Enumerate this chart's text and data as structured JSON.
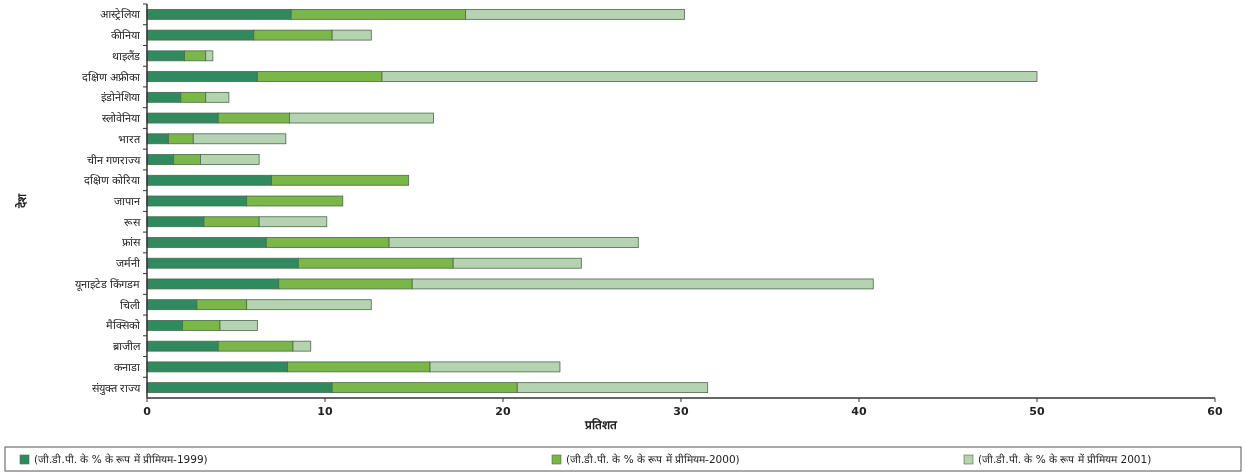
{
  "chart_data": {
    "type": "bar",
    "orientation": "horizontal",
    "stacked": true,
    "categories": [
      "आस्ट्रेलिया",
      "कीनिया",
      "थाइलैंड",
      "दक्षिण अफ्रीका",
      "इंडोनेशिया",
      "स्लोवेनिया",
      "भारत",
      "चीन गणराज्य",
      "दक्षिण कोरिया",
      "जापान",
      "रूस",
      "फ्रांस",
      "जर्मनी",
      "यूनाइटेड किंगडम",
      "चिली",
      "मैक्सिको",
      "ब्राजील",
      "कनाडा",
      "संयुक्त राज्य"
    ],
    "series": [
      {
        "name": "(जी.डी.पी. के % के रूप में प्रीमियम-1999)",
        "color": "#2f8a5f",
        "values": [
          8.1,
          6.0,
          2.1,
          6.2,
          1.9,
          4.0,
          1.2,
          1.5,
          7.0,
          5.6,
          3.2,
          6.7,
          8.5,
          7.4,
          2.8,
          2.0,
          4.0,
          7.9,
          10.4
        ]
      },
      {
        "name": "(जी.डी.पी. के % के रूप में प्रीमियम-2000)",
        "color": "#7ab648",
        "values": [
          9.8,
          4.4,
          1.2,
          7.0,
          1.4,
          4.0,
          1.4,
          1.5,
          7.7,
          5.4,
          3.1,
          6.9,
          8.7,
          7.5,
          2.8,
          2.1,
          4.2,
          8.0,
          10.4
        ]
      },
      {
        "name": "(जी.डी.पी. के % के रूप में प्रीमियम 2001)",
        "color": "#b5d3b0",
        "values": [
          12.3,
          2.2,
          0.4,
          36.8,
          1.3,
          8.1,
          5.2,
          3.3,
          null,
          null,
          3.8,
          14.0,
          7.2,
          25.9,
          7.0,
          2.1,
          1.0,
          7.3,
          10.7
        ]
      }
    ],
    "xlim": [
      0,
      60
    ],
    "xticks": [
      0,
      10,
      20,
      30,
      40,
      50,
      60
    ],
    "xlabel": "प्रतिशत",
    "ylabel": "देश",
    "legend": "bottom",
    "grid": false
  }
}
